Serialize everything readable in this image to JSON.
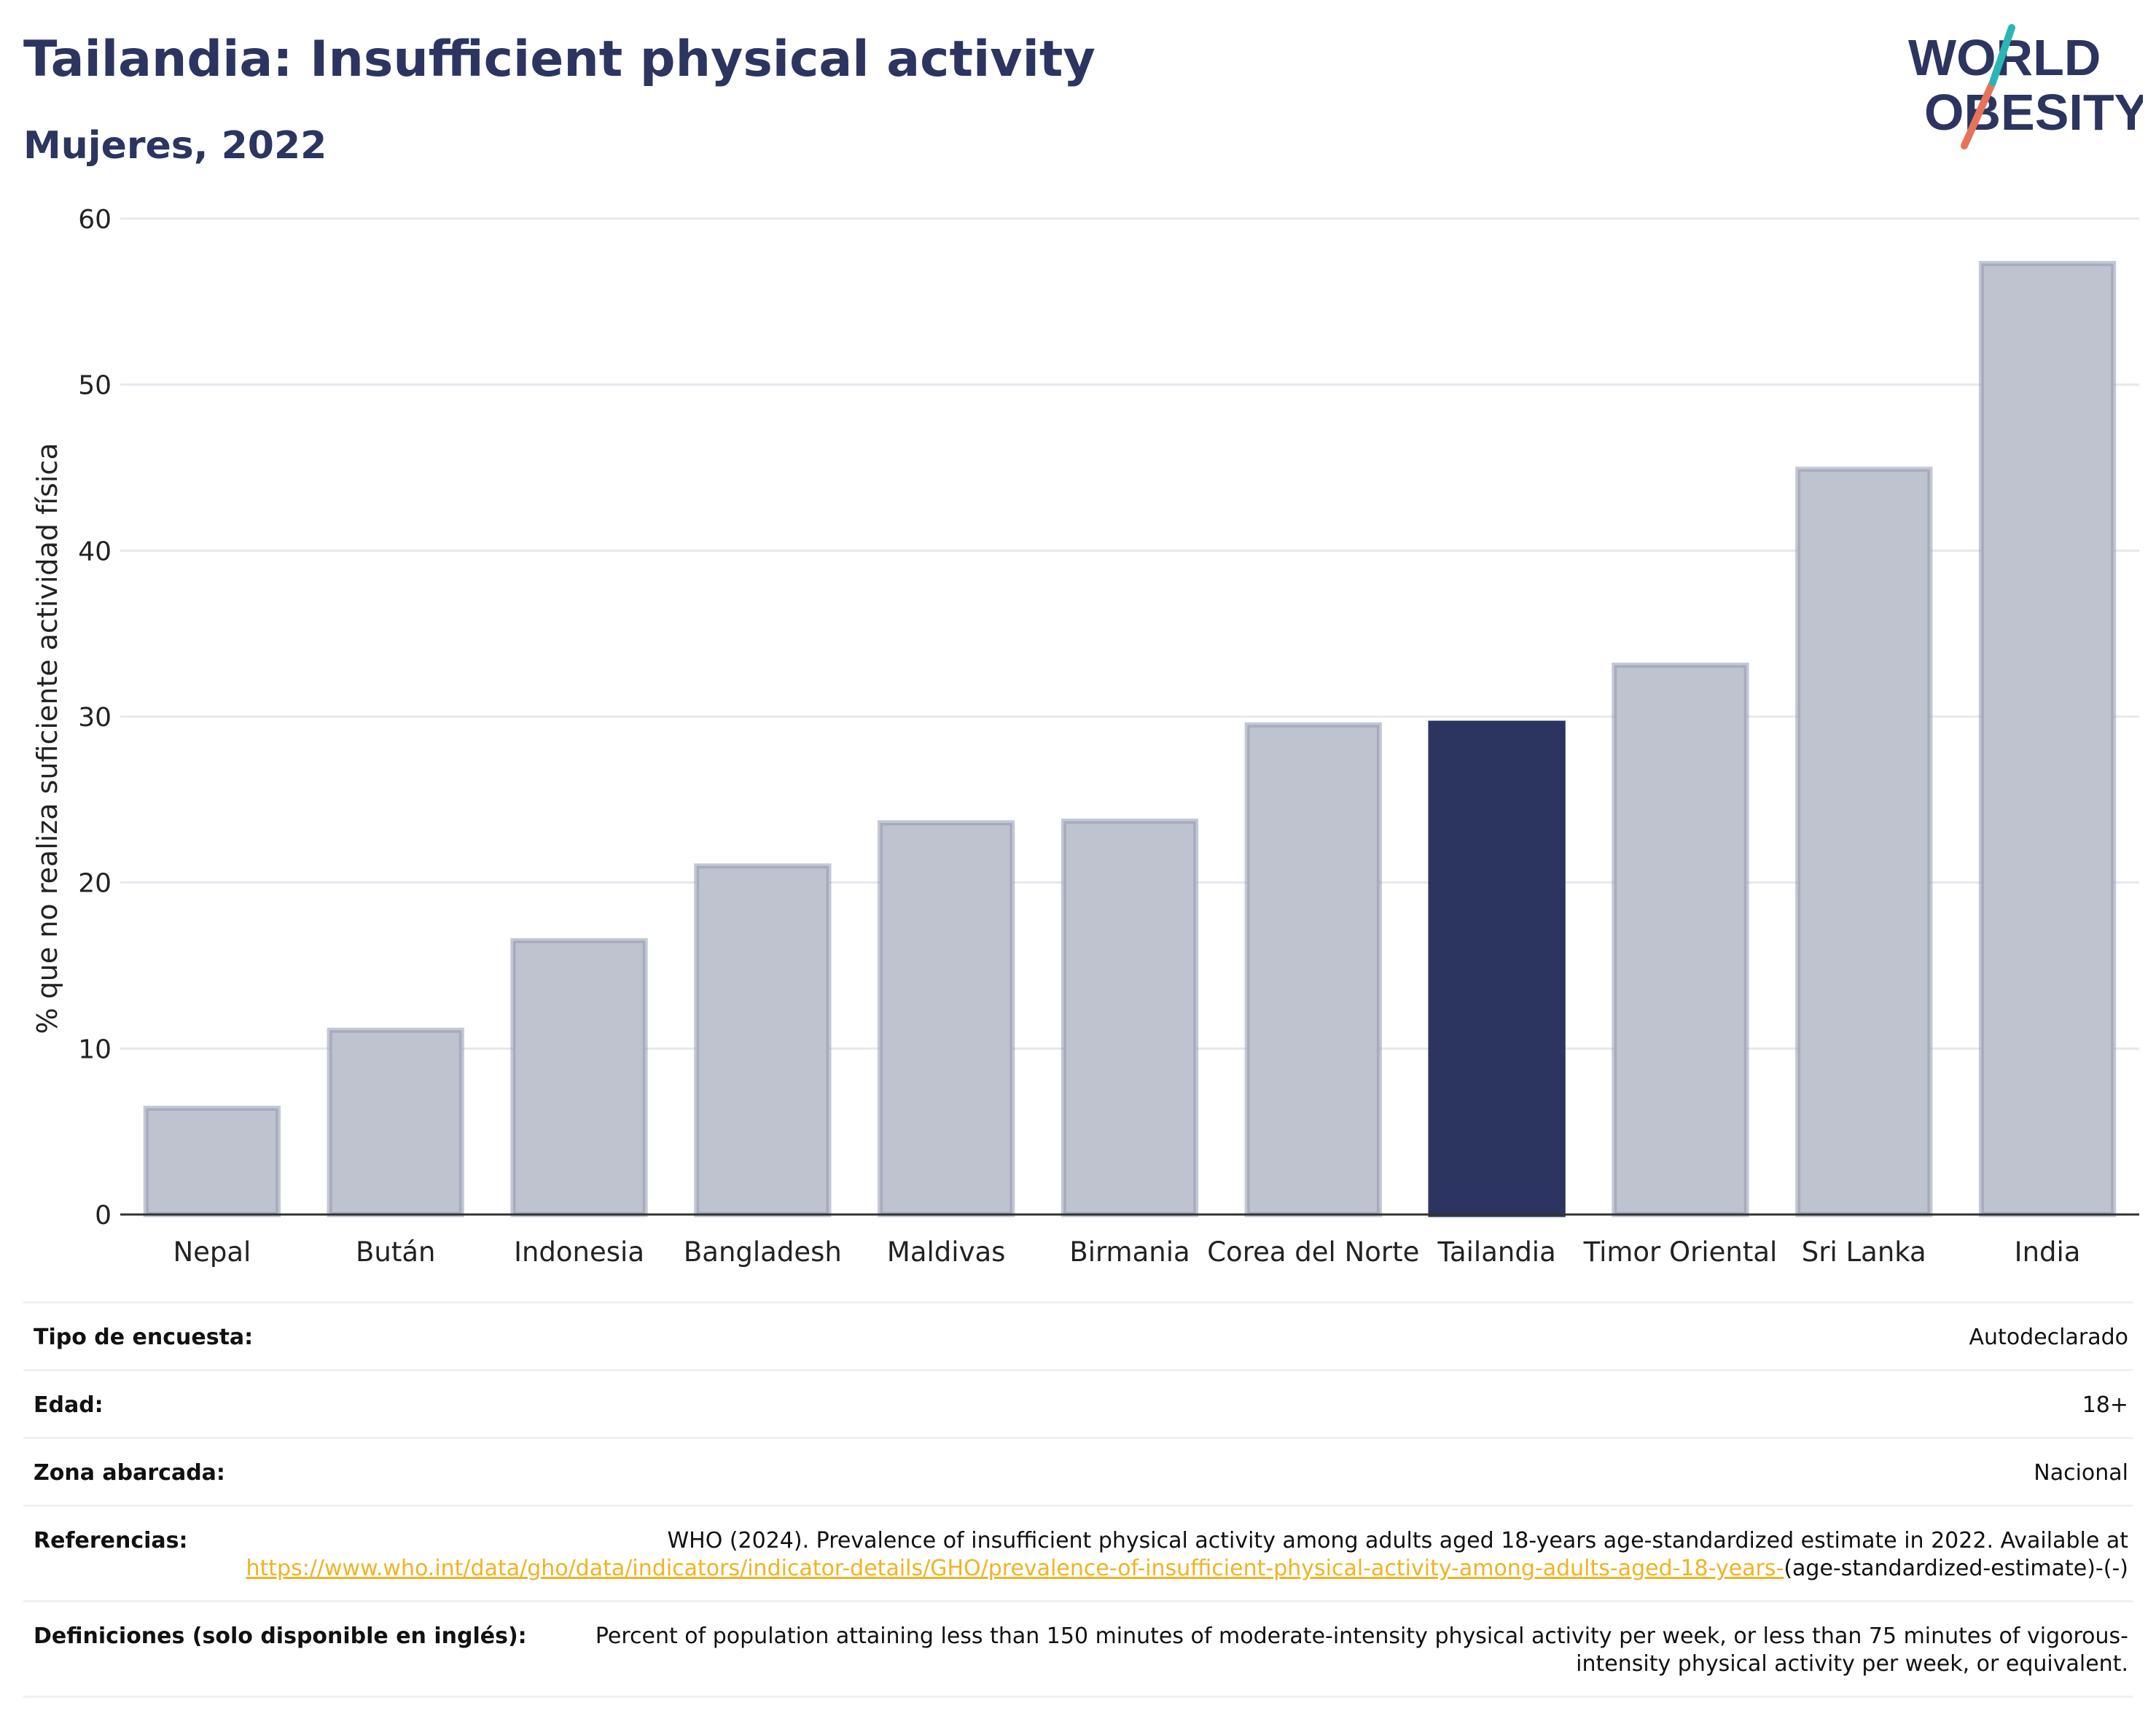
{
  "header": {
    "title": "Tailandia: Insufficient physical activity",
    "subtitle": "Mujeres, 2022"
  },
  "logo": {
    "line1": "WORLD",
    "line2": "OBESITY"
  },
  "colors": {
    "title": "#2b3560",
    "bar": "#bfc2cf",
    "bar_border": "#9499b0",
    "highlight": "#2b3560",
    "link": "#f0b323"
  },
  "chart_data": {
    "type": "bar",
    "title": "",
    "xlabel": "",
    "ylabel": "% que no realiza suficiente actividad física",
    "ylim": [
      0,
      60
    ],
    "yticks": [
      0,
      10,
      20,
      30,
      40,
      50,
      60
    ],
    "grid": true,
    "categories": [
      "Nepal",
      "Bután",
      "Indonesia",
      "Bangladesh",
      "Maldivas",
      "Birmania",
      "Corea del Norte",
      "Tailandia",
      "Timor Oriental",
      "Sri Lanka",
      "India"
    ],
    "values": [
      6.4,
      11.1,
      16.5,
      21.0,
      23.6,
      23.7,
      29.5,
      29.6,
      33.1,
      44.9,
      57.3
    ],
    "highlight": "Tailandia"
  },
  "info": {
    "rows": [
      {
        "label": "Tipo de encuesta:",
        "value": "Autodeclarado"
      },
      {
        "label": "Edad:",
        "value": "18+"
      },
      {
        "label": "Zona abarcada:",
        "value": "Nacional"
      },
      {
        "label": "Referencias:",
        "value": "WHO (2024). Prevalence of insufficient physical activity among adults aged 18-years age-standardized estimate in 2022. Available at ",
        "link": "https://www.who.int/data/gho/data/indicators/indicator-details/GHO/prevalence-of-insufficient-physical-activity-among-adults-aged-18-years-",
        "suffix": "(age-standardized-estimate)-(-)"
      },
      {
        "label": "Definiciones (solo disponible en inglés):",
        "value": "Percent of population attaining less than 150 minutes of moderate-intensity physical activity per week, or less than 75 minutes of vigorous-intensity physical activity per week, or equivalent."
      }
    ]
  }
}
